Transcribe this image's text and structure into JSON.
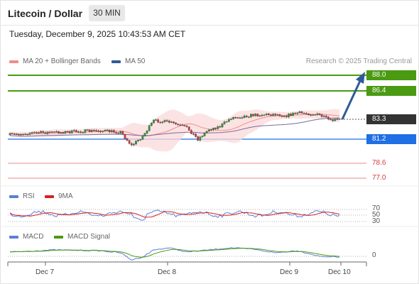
{
  "header": {
    "title": "Litecoin / Dollar",
    "timeframe": "30 MIN"
  },
  "datetime": "Tuesday, December 9, 2025 10:43:53 AM CET",
  "legend": {
    "ma20": {
      "label": "MA 20 + Bollinger Bands",
      "color": "#f28b8b"
    },
    "ma50": {
      "label": "MA 50",
      "color": "#2f5a99"
    }
  },
  "credit": "Research © 2025 Trading Central",
  "levels": [
    {
      "label": "88.0",
      "kind": "target",
      "color": "#4a9a12"
    },
    {
      "label": "86.4",
      "kind": "target",
      "color": "#4a9a12"
    },
    {
      "label": "83.3",
      "kind": "last",
      "color": "#333333"
    },
    {
      "label": "81.2",
      "kind": "pivot",
      "color": "#1f6fe5"
    },
    {
      "label": "78.6",
      "kind": "support",
      "color": "#d93a3a"
    },
    {
      "label": "77.0",
      "kind": "support",
      "color": "#d93a3a"
    }
  ],
  "rsi": {
    "legend": [
      {
        "label": "RSI",
        "color": "#5b7fd6"
      },
      {
        "label": "9MA",
        "color": "#d62020"
      }
    ],
    "levels": [
      "70",
      "50",
      "30"
    ]
  },
  "macd": {
    "legend": [
      {
        "label": "MACD",
        "color": "#5b7fd6"
      },
      {
        "label": "MACD Signal",
        "color": "#4a9a12"
      }
    ],
    "zero_label": "0"
  },
  "x_axis": [
    "Dec 7",
    "Dec 8",
    "Dec 9",
    "Dec 10"
  ]
}
